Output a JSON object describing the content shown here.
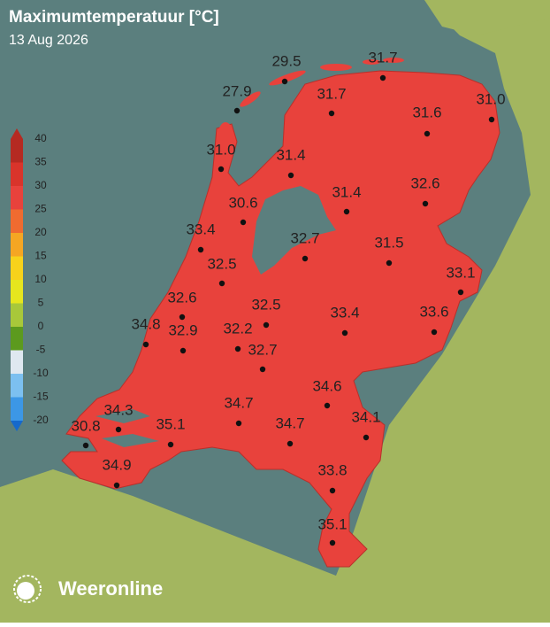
{
  "header": {
    "title": "Maximumtemperatuur [°C]",
    "date": "13 Aug 2026"
  },
  "legend": {
    "ticks": [
      40,
      35,
      30,
      25,
      20,
      15,
      10,
      5,
      0,
      -5,
      -10,
      -15,
      -20
    ]
  },
  "stations": [
    "29.5",
    "31.7",
    "27.9",
    "31.7",
    "31.0",
    "31.6",
    "31.0",
    "31.4",
    "31.4",
    "32.6",
    "30.6",
    "33.4",
    "32.7",
    "31.5",
    "32.5",
    "33.1",
    "32.6",
    "32.5",
    "34.8",
    "33.4",
    "33.6",
    "32.9",
    "32.2",
    "32.7",
    "34.6",
    "34.3",
    "34.7",
    "34.1",
    "30.8",
    "35.1",
    "34.7",
    "34.9",
    "33.8",
    "35.1"
  ],
  "brand": "Weeronline"
}
